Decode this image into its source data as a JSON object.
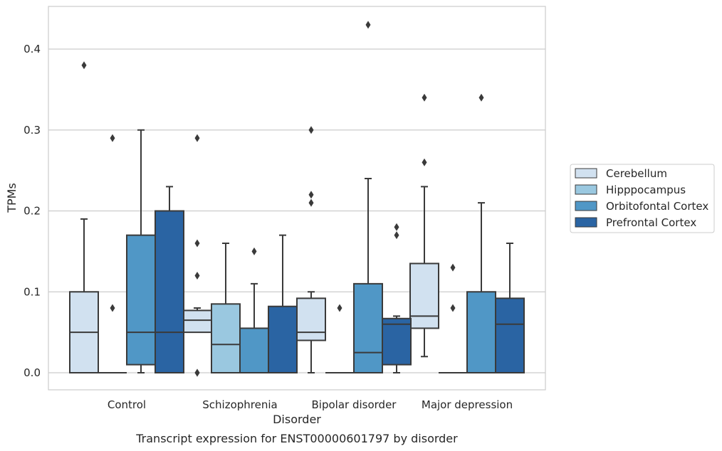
{
  "chart_data": {
    "type": "box",
    "title": "",
    "caption": "Transcript expression for ENST00000601797 by disorder",
    "xlabel": "Disorder",
    "ylabel": "TPMs",
    "ylim": [
      -0.021,
      0.453
    ],
    "yticks": [
      0.0,
      0.1,
      0.2,
      0.3,
      0.4
    ],
    "ytick_labels": [
      "0.0",
      "0.1",
      "0.2",
      "0.3",
      "0.4"
    ],
    "grid": "horizontal",
    "legend_position": "right",
    "categories": [
      "Control",
      "Schizophrenia",
      "Bipolar disorder",
      "Major depression"
    ],
    "series": [
      {
        "name": "Cerebellum",
        "color": "#d1e1f0",
        "boxes": [
          {
            "whisker_low": 0.0,
            "q1": 0.0,
            "median": 0.05,
            "q3": 0.1,
            "whisker_high": 0.19,
            "outliers": [
              0.38
            ]
          },
          {
            "whisker_low": 0.05,
            "q1": 0.05,
            "median": 0.065,
            "q3": 0.077,
            "whisker_high": 0.08,
            "outliers": [
              0.29,
              0.16,
              0.12,
              0.0,
              0.0
            ]
          },
          {
            "whisker_low": 0.0,
            "q1": 0.04,
            "median": 0.05,
            "q3": 0.092,
            "whisker_high": 0.1,
            "outliers": [
              0.3,
              0.22,
              0.21
            ]
          },
          {
            "whisker_low": 0.02,
            "q1": 0.055,
            "median": 0.07,
            "q3": 0.135,
            "whisker_high": 0.23,
            "outliers": [
              0.34,
              0.26
            ]
          }
        ]
      },
      {
        "name": "Hipppocampus",
        "color": "#9ac8e0",
        "boxes": [
          {
            "whisker_low": 0.0,
            "q1": 0.0,
            "median": 0.0,
            "q3": 0.0,
            "whisker_high": 0.0,
            "outliers": [
              0.29,
              0.08
            ]
          },
          {
            "whisker_low": 0.0,
            "q1": 0.0,
            "median": 0.035,
            "q3": 0.085,
            "whisker_high": 0.16,
            "outliers": []
          },
          {
            "whisker_low": 0.0,
            "q1": 0.0,
            "median": 0.0,
            "q3": 0.0,
            "whisker_high": 0.0,
            "outliers": [
              0.08
            ]
          },
          {
            "whisker_low": 0.0,
            "q1": 0.0,
            "median": 0.0,
            "q3": 0.0,
            "whisker_high": 0.0,
            "outliers": [
              0.13,
              0.08
            ]
          }
        ]
      },
      {
        "name": "Orbitofontal Cortex",
        "color": "#5097c6",
        "boxes": [
          {
            "whisker_low": 0.0,
            "q1": 0.01,
            "median": 0.05,
            "q3": 0.17,
            "whisker_high": 0.3,
            "outliers": []
          },
          {
            "whisker_low": 0.0,
            "q1": 0.0,
            "median": 0.0,
            "q3": 0.055,
            "whisker_high": 0.11,
            "outliers": [
              0.15
            ]
          },
          {
            "whisker_low": 0.0,
            "q1": 0.0,
            "median": 0.025,
            "q3": 0.11,
            "whisker_high": 0.24,
            "outliers": [
              0.43
            ]
          },
          {
            "whisker_low": 0.0,
            "q1": 0.0,
            "median": 0.0,
            "q3": 0.1,
            "whisker_high": 0.21,
            "outliers": [
              0.34
            ]
          }
        ]
      },
      {
        "name": "Prefrontal Cortex",
        "color": "#2a64a3",
        "boxes": [
          {
            "whisker_low": 0.0,
            "q1": 0.0,
            "median": 0.05,
            "q3": 0.2,
            "whisker_high": 0.23,
            "outliers": []
          },
          {
            "whisker_low": 0.0,
            "q1": 0.0,
            "median": 0.0,
            "q3": 0.082,
            "whisker_high": 0.17,
            "outliers": []
          },
          {
            "whisker_low": 0.0,
            "q1": 0.01,
            "median": 0.06,
            "q3": 0.067,
            "whisker_high": 0.07,
            "outliers": [
              0.18,
              0.17
            ]
          },
          {
            "whisker_low": 0.0,
            "q1": 0.0,
            "median": 0.06,
            "q3": 0.092,
            "whisker_high": 0.16,
            "outliers": []
          }
        ]
      }
    ]
  },
  "style": {
    "line_color": "#3a3a3a",
    "grid_color": "#cccccc",
    "frame_color": "#cccccc",
    "text_color": "#262626"
  }
}
